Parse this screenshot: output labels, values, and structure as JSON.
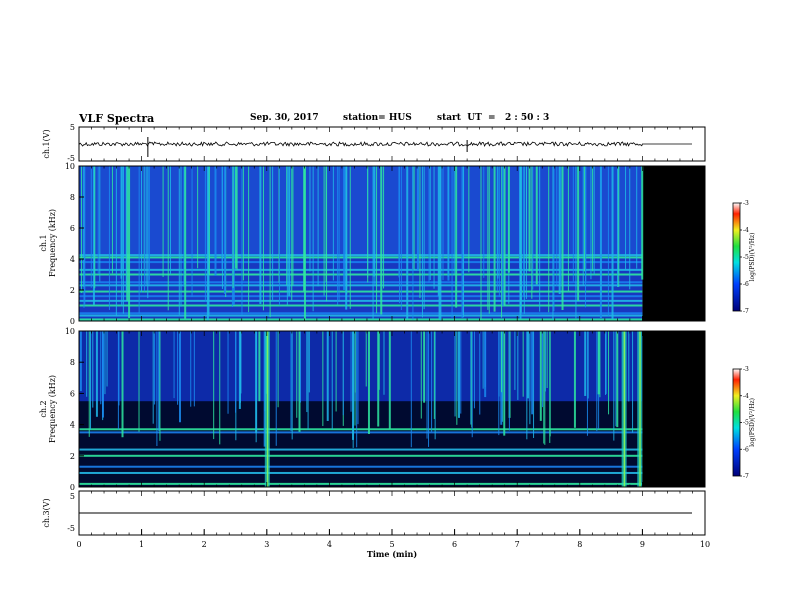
{
  "header": {
    "title": "VLF Spectra",
    "date": "Sep. 30, 2017",
    "station": "station= HUS",
    "start": "start  UT  =   2 : 50 : 3"
  },
  "chart_data": [
    {
      "type": "line",
      "panel": "ch1-waveform",
      "ylabel": "ch.1(V)",
      "ylim": [
        -5,
        5
      ],
      "yticks": [
        "5",
        "-5"
      ],
      "xlim": [
        0,
        10
      ],
      "description_values": {
        "data_end_min": 9.0,
        "baseline_v": 0
      }
    },
    {
      "type": "heatmap",
      "panel": "ch1-spectrogram",
      "ylabel": "ch.1\nFrequency (kHz)",
      "ylabel_line1": "ch.1",
      "ylabel_line2": "Frequency (kHz)",
      "ylim": [
        0,
        10
      ],
      "yticks": [
        "0",
        "2",
        "4",
        "6",
        "8",
        "10"
      ],
      "xlim": [
        0,
        10
      ],
      "data_end_min": 9.0,
      "line_emissions_khz": [
        0.1,
        0.35,
        0.5,
        1.0,
        1.3,
        1.6,
        1.9,
        2.3,
        2.5,
        3.0,
        3.3,
        3.8,
        4.1,
        4.25
      ],
      "colorbar": {
        "label": "log(PSD)(V²/Hz)",
        "ticks": [
          "-3",
          "-4",
          "-5",
          "-6",
          "-7"
        ],
        "range": [
          -7,
          -3
        ]
      }
    },
    {
      "type": "heatmap",
      "panel": "ch2-spectrogram",
      "ylabel": "ch.2\nFrequency (kHz)",
      "ylabel_line1": "ch.2",
      "ylabel_line2": "Frequency (kHz)",
      "ylim": [
        0,
        10
      ],
      "yticks": [
        "0",
        "2",
        "4",
        "6",
        "8",
        "10"
      ],
      "xlim": [
        0,
        10
      ],
      "data_end_min": 9.0,
      "line_emissions_khz": [
        0.2,
        0.9,
        1.3,
        2.0,
        2.4,
        3.5,
        3.7
      ],
      "colorbar": {
        "label": "log(PSD)(V²/Hz)",
        "ticks": [
          "-3",
          "-4",
          "-5",
          "-6",
          "-7"
        ],
        "range": [
          -7,
          -3
        ]
      }
    },
    {
      "type": "line",
      "panel": "ch3-waveform",
      "ylabel": "ch.3(V)",
      "ylim": [
        -5,
        5
      ],
      "yticks": [
        "5",
        "-5"
      ],
      "xlim": [
        0,
        10
      ],
      "xlabel": "Time  (min)",
      "xticks": [
        "0",
        "1",
        "2",
        "3",
        "4",
        "5",
        "6",
        "7",
        "8",
        "9",
        "10"
      ],
      "description_values": {
        "baseline_v": 0
      }
    }
  ],
  "colors": {
    "background": "#000000",
    "noise_floor": "#1230c8",
    "emission": "#2ee8a0",
    "strong": "#58f060"
  }
}
